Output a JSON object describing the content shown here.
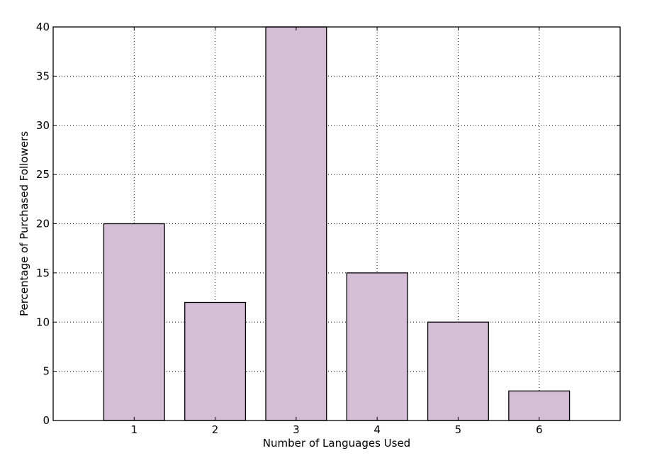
{
  "chart_data": {
    "type": "bar",
    "categories": [
      "1",
      "2",
      "3",
      "4",
      "5",
      "6"
    ],
    "x": [
      1,
      2,
      3,
      4,
      5,
      6
    ],
    "values": [
      20,
      12,
      40,
      15,
      10,
      3
    ],
    "title": "",
    "xlabel": "Number of Languages Used",
    "ylabel": "Percentage of Purchased Followers",
    "xlim": [
      0,
      7
    ],
    "ylim": [
      0,
      40
    ],
    "yticks": [
      0,
      5,
      10,
      15,
      20,
      25,
      30,
      35,
      40
    ],
    "bar_width": 0.75,
    "grid": true,
    "bar_color": "#d4bdd5",
    "edge_color": "#000000"
  }
}
